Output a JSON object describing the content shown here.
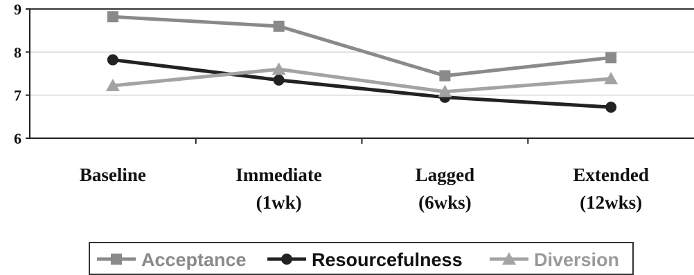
{
  "chart_data": {
    "type": "line",
    "title": "",
    "xlabel": "",
    "ylabel": "",
    "categories": [
      [
        "Baseline"
      ],
      [
        "Immediate",
        "(1wk)"
      ],
      [
        "Lagged",
        "(6wks)"
      ],
      [
        "Extended",
        "(12wks)"
      ]
    ],
    "ylim": [
      6,
      9
    ],
    "yticks": [
      "6",
      "7",
      "8",
      "9"
    ],
    "grid": true,
    "legend": "bottom",
    "series": [
      {
        "name": "Acceptance",
        "values": [
          8.82,
          8.6,
          7.45,
          7.87
        ],
        "color": "#8a8a8a",
        "marker": "square"
      },
      {
        "name": "Resourcefulness",
        "values": [
          7.82,
          7.35,
          6.95,
          6.72
        ],
        "color": "#222222",
        "marker": "circle"
      },
      {
        "name": "Diversion",
        "values": [
          7.22,
          7.6,
          7.08,
          7.38
        ],
        "color": "#a3a3a3",
        "marker": "triangle"
      }
    ]
  }
}
